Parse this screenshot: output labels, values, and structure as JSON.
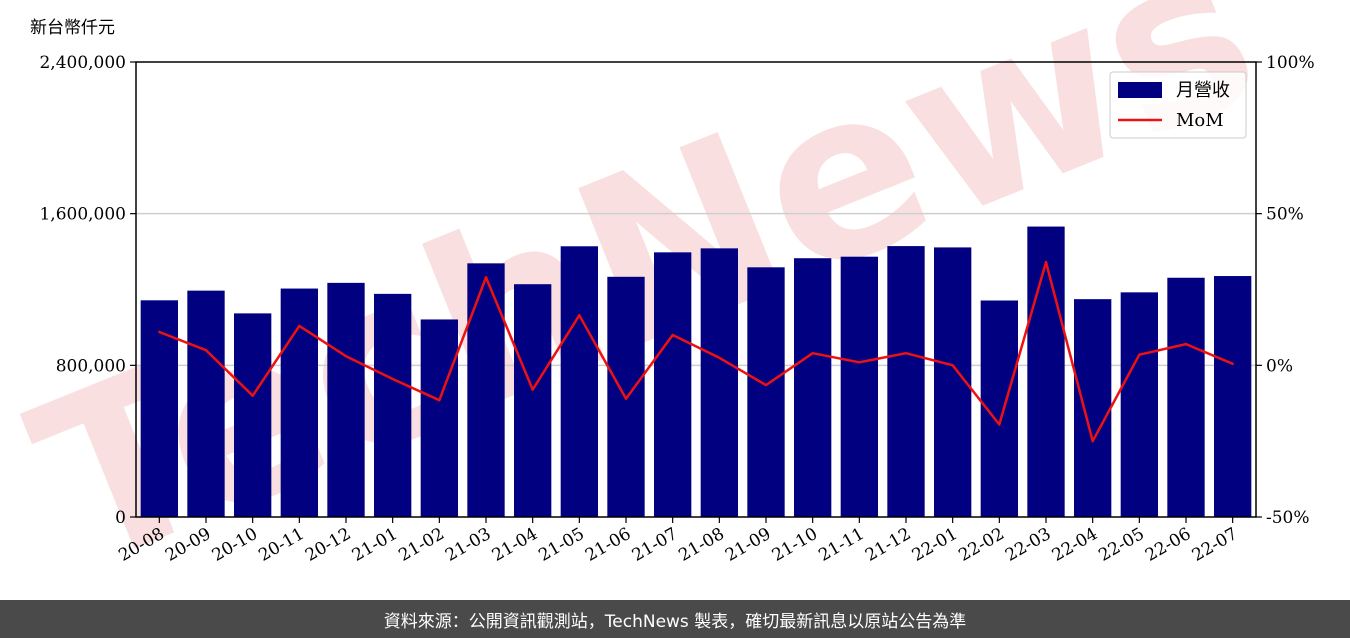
{
  "unit_label": "新台幣仟元",
  "footer": {
    "source_text": "資料來源：公開資訊觀測站，TechNews 製表，確切最新訊息以原站公告為準"
  },
  "watermark": {
    "text": "TechNews",
    "color": "#f2b8b8"
  },
  "chart_data": {
    "type": "bar",
    "categories": [
      "20-08",
      "20-09",
      "20-10",
      "20-11",
      "20-12",
      "21-01",
      "21-02",
      "21-03",
      "21-04",
      "21-05",
      "21-06",
      "21-07",
      "21-08",
      "21-09",
      "21-10",
      "21-11",
      "21-12",
      "22-01",
      "22-02",
      "22-03",
      "22-04",
      "22-05",
      "22-06",
      "22-07"
    ],
    "series": [
      {
        "name": "月營收",
        "type": "bar",
        "axis": "left",
        "color": "#000080",
        "values": [
          1143000,
          1194000,
          1074000,
          1205000,
          1235000,
          1177000,
          1042000,
          1338000,
          1228000,
          1428000,
          1267000,
          1396000,
          1417000,
          1317000,
          1365000,
          1373000,
          1429000,
          1422000,
          1142000,
          1532000,
          1149000,
          1185000,
          1262000,
          1271000
        ]
      },
      {
        "name": "MoM",
        "type": "line",
        "axis": "right",
        "color": "#ee1111",
        "values": [
          11,
          5,
          -10,
          13,
          3,
          -4.5,
          -11.5,
          29,
          -8,
          16.5,
          -11,
          10,
          2.5,
          -6.5,
          4,
          1,
          4,
          0,
          -19.5,
          34,
          -25,
          3.5,
          7,
          0.5
        ]
      }
    ],
    "y_left": {
      "min": 0,
      "max": 2400000,
      "ticks": [
        0,
        800000,
        1600000,
        2400000
      ],
      "tick_labels": [
        "0",
        "800,000",
        "1,600,000",
        "2,400,000"
      ]
    },
    "y_right": {
      "min": -50,
      "max": 100,
      "ticks": [
        -50,
        0,
        50,
        100
      ],
      "tick_labels": [
        "-50%",
        "0%",
        "50%",
        "100%"
      ]
    },
    "grid": true,
    "legend": "top-right"
  }
}
